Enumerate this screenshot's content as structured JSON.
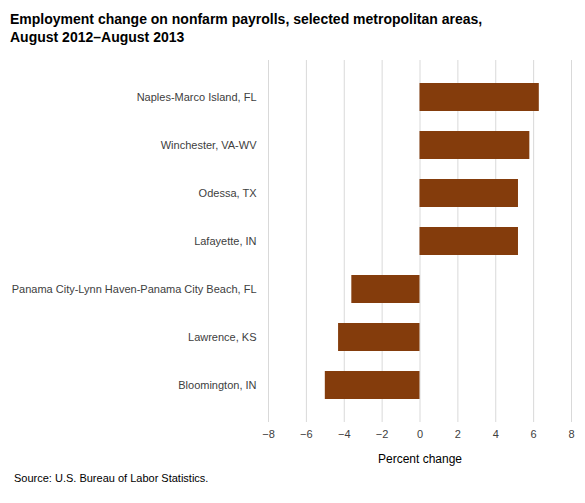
{
  "chart_data": {
    "type": "bar",
    "orientation": "horizontal",
    "title": "Employment change on nonfarm payrolls, selected metropolitan areas, August 2012–August 2013",
    "source": "Source: U.S. Bureau of Labor Statistics.",
    "xlabel": "Percent change",
    "categories": [
      "Naples-Marco Island, FL",
      "Winchester, VA-WV",
      "Odessa, TX",
      "Lafayette, IN",
      "Panama City-Lynn Haven-Panama City Beach, FL",
      "Lawrence, KS",
      "Bloomington, IN"
    ],
    "values": [
      6.3,
      5.8,
      5.2,
      5.2,
      -3.6,
      -4.3,
      -5.0
    ],
    "color": "#843c0c",
    "xlim": [
      -8,
      8
    ],
    "xticks": [
      -8,
      -6,
      -4,
      -2,
      0,
      2,
      4,
      6,
      8
    ],
    "grid": true
  }
}
